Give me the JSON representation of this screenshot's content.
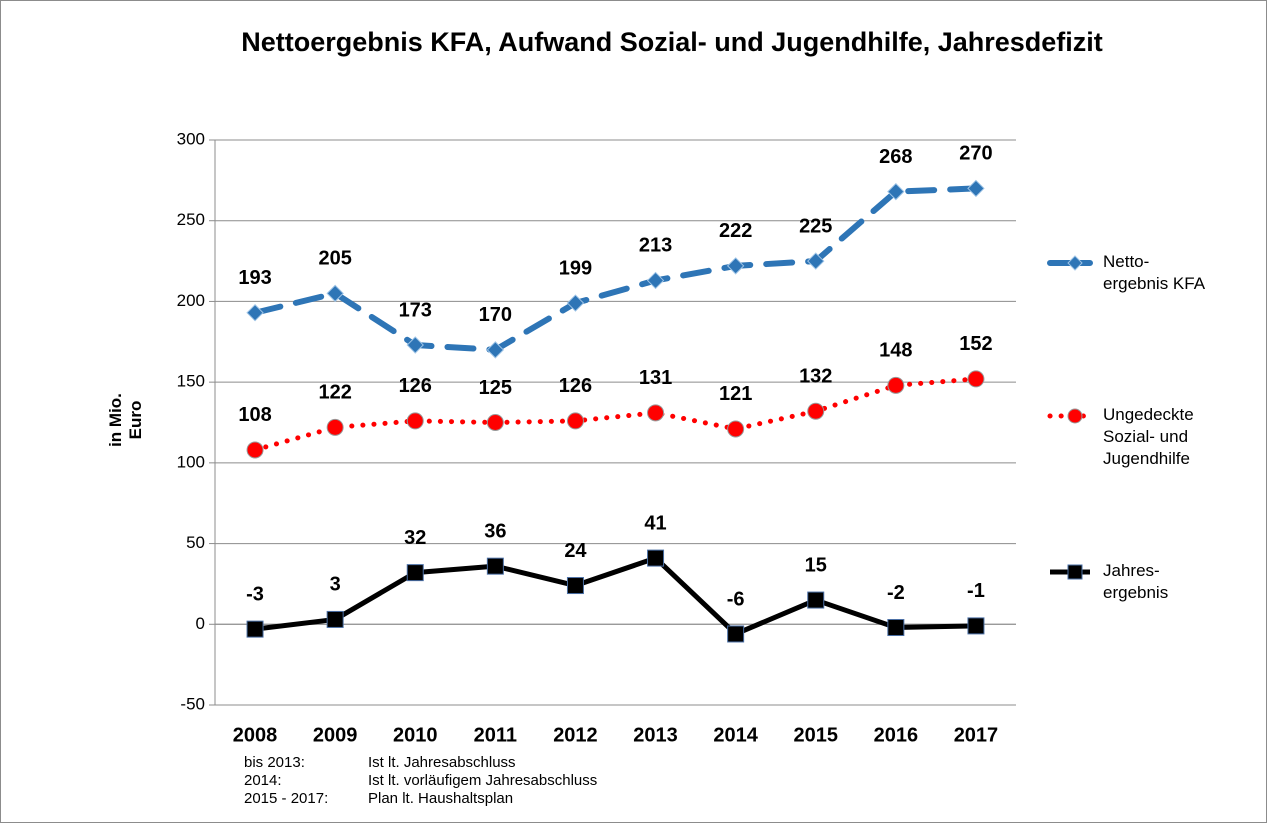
{
  "chart_data": {
    "type": "line",
    "title": "Nettoergebnis KFA, Aufwand Sozial- und Jugendhilfe, Jahresdefizit",
    "y_label": "in Mio.\nEuro",
    "categories": [
      "2008",
      "2009",
      "2010",
      "2011",
      "2012",
      "2013",
      "2014",
      "2015",
      "2016",
      "2017"
    ],
    "series": [
      {
        "name": "Netto-\nergebnis KFA",
        "color": "#2e75b6",
        "line": "dashed",
        "marker": "diamond",
        "values": [
          193,
          205,
          173,
          170,
          199,
          213,
          222,
          225,
          268,
          270
        ]
      },
      {
        "name": "Ungedeckte\nSozial- und\nJugendhilfe",
        "color": "#ff0000",
        "line": "dotted",
        "marker": "circle",
        "values": [
          108,
          122,
          126,
          125,
          126,
          131,
          121,
          132,
          148,
          152
        ]
      },
      {
        "name": "Jahres-\nergebnis",
        "color": "#000000",
        "line": "solid",
        "marker": "square",
        "values": [
          -3,
          3,
          32,
          36,
          24,
          41,
          -6,
          15,
          -2,
          -1
        ]
      }
    ],
    "ylim": [
      -50,
      300
    ],
    "yticks": [
      -50,
      0,
      50,
      100,
      150,
      200,
      250,
      300
    ],
    "grid": true,
    "legend": "right",
    "notes": [
      [
        "bis 2013:",
        "Ist lt. Jahresabschluss"
      ],
      [
        "2014:",
        "Ist lt. vorläufigem Jahresabschluss"
      ],
      [
        "2015 - 2017:",
        "Plan lt. Haushaltsplan"
      ]
    ]
  }
}
